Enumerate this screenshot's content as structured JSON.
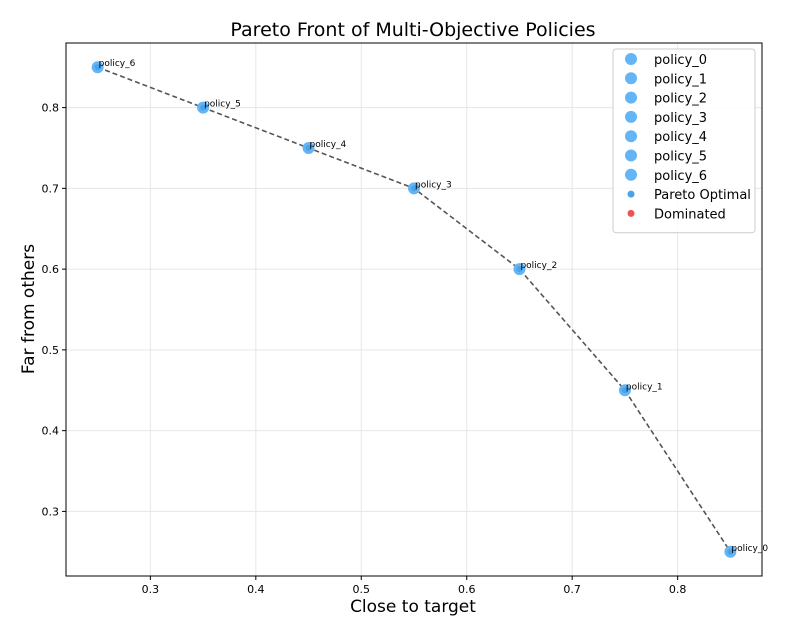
{
  "chart_data": {
    "type": "scatter",
    "title": "Pareto Front of Multi-Objective Policies",
    "xlabel": "Close to target",
    "ylabel": "Far from others",
    "xlim": [
      0.22,
      0.88
    ],
    "ylim": [
      0.22,
      0.88
    ],
    "xticks": [
      0.3,
      0.4,
      0.5,
      0.6,
      0.7,
      0.8
    ],
    "yticks": [
      0.3,
      0.4,
      0.5,
      0.6,
      0.7,
      0.8
    ],
    "grid": true,
    "legend_position": "top-right",
    "points": [
      {
        "label": "policy_0",
        "x": 0.85,
        "y": 0.25,
        "pareto_optimal": true
      },
      {
        "label": "policy_1",
        "x": 0.75,
        "y": 0.45,
        "pareto_optimal": true
      },
      {
        "label": "policy_2",
        "x": 0.65,
        "y": 0.6,
        "pareto_optimal": true
      },
      {
        "label": "policy_3",
        "x": 0.55,
        "y": 0.7,
        "pareto_optimal": true
      },
      {
        "label": "policy_4",
        "x": 0.45,
        "y": 0.75,
        "pareto_optimal": true
      },
      {
        "label": "policy_5",
        "x": 0.35,
        "y": 0.8,
        "pareto_optimal": true
      },
      {
        "label": "policy_6",
        "x": 0.25,
        "y": 0.85,
        "pareto_optimal": true
      }
    ],
    "front_line": {
      "style": "dashed",
      "color": "#555555"
    },
    "legend": [
      {
        "label": "policy_0",
        "marker": "large",
        "color": "#64b5f6"
      },
      {
        "label": "policy_1",
        "marker": "large",
        "color": "#64b5f6"
      },
      {
        "label": "policy_2",
        "marker": "large",
        "color": "#64b5f6"
      },
      {
        "label": "policy_3",
        "marker": "large",
        "color": "#64b5f6"
      },
      {
        "label": "policy_4",
        "marker": "large",
        "color": "#64b5f6"
      },
      {
        "label": "policy_5",
        "marker": "large",
        "color": "#64b5f6"
      },
      {
        "label": "policy_6",
        "marker": "large",
        "color": "#64b5f6"
      },
      {
        "label": "Pareto Optimal",
        "marker": "small",
        "color": "#4aa3e8"
      },
      {
        "label": "Dominated",
        "marker": "small",
        "color": "#ef5350"
      }
    ],
    "colors": {
      "point": "#64b5f6",
      "pareto": "#4aa3e8",
      "dominated": "#ef5350",
      "grid": "#e6e6e6"
    }
  }
}
